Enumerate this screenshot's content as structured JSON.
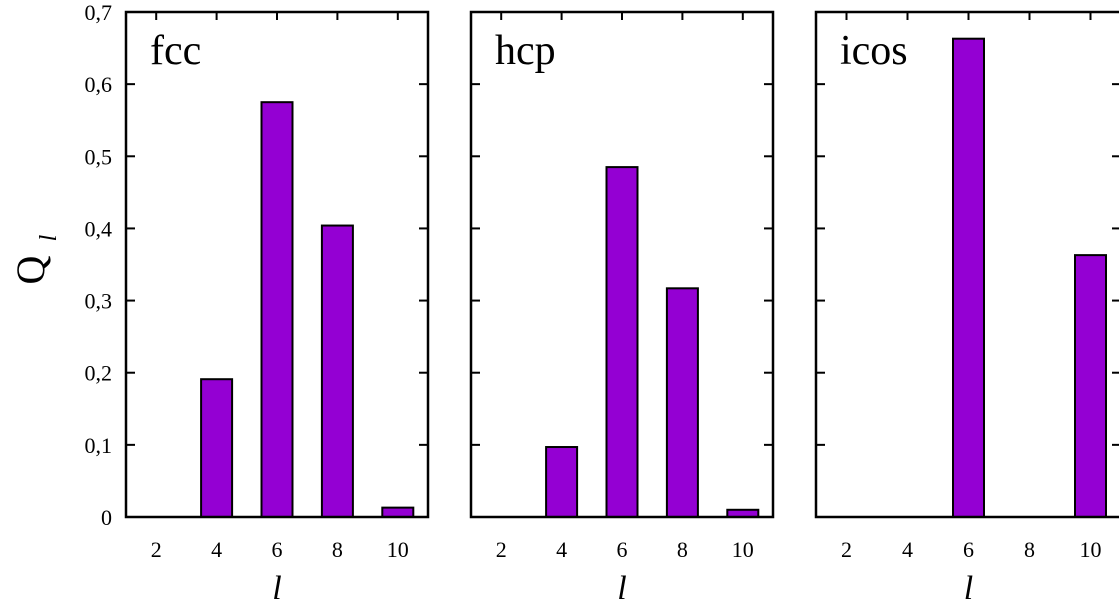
{
  "chart_data": {
    "type": "bar",
    "ylabel_main": "Q",
    "ylabel_sub": "l",
    "ylim": [
      0,
      0.7
    ],
    "yticks": [
      0,
      0.1,
      0.2,
      0.3,
      0.4,
      0.5,
      0.6,
      0.7
    ],
    "ytick_labels": [
      "0",
      "0,1",
      "0,2",
      "0,3",
      "0,4",
      "0,5",
      "0,6",
      "0,7"
    ],
    "xlabel": "l",
    "colors": {
      "bar": "#9400D3",
      "edge": "#000000"
    },
    "panels": [
      {
        "title": "fcc",
        "categories": [
          "2",
          "4",
          "6",
          "8",
          "10"
        ],
        "values": [
          0,
          0.191,
          0.575,
          0.404,
          0.013
        ]
      },
      {
        "title": "hcp",
        "categories": [
          "2",
          "4",
          "6",
          "8",
          "10"
        ],
        "values": [
          0,
          0.097,
          0.485,
          0.317,
          0.01
        ]
      },
      {
        "title": "icos",
        "categories": [
          "2",
          "4",
          "6",
          "8",
          "10"
        ],
        "values": [
          0,
          0,
          0.663,
          0,
          0.363
        ]
      }
    ]
  }
}
